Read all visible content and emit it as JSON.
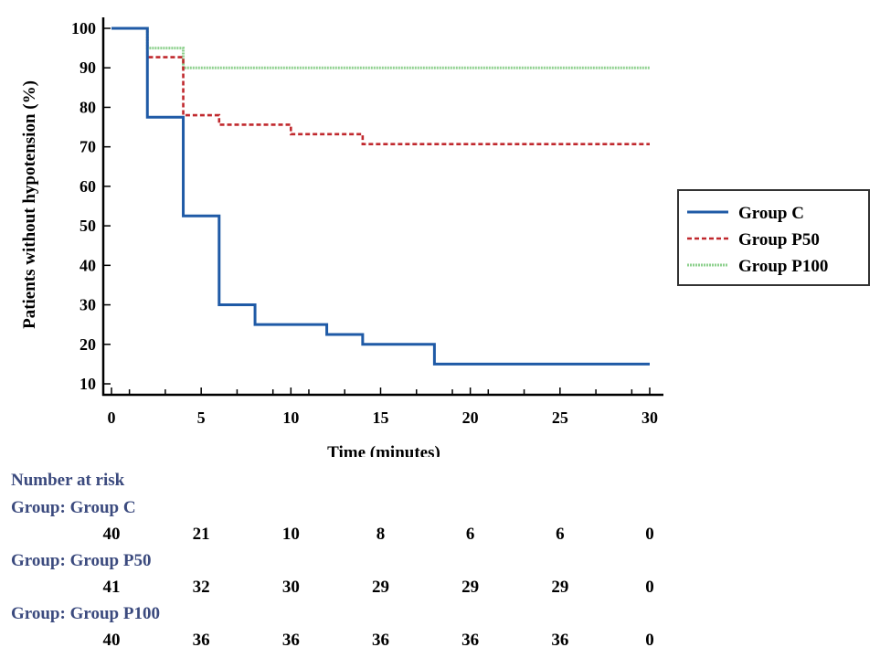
{
  "chart_data": {
    "type": "line",
    "subtype": "kaplan-meier-step",
    "xlabel": "Time (minutes)",
    "ylabel": "Patients without hypotension (%)",
    "xlim": [
      0,
      30
    ],
    "ylim": [
      10,
      100
    ],
    "xticks": [
      0,
      5,
      10,
      15,
      20,
      25,
      30
    ],
    "yticks": [
      10,
      20,
      30,
      40,
      50,
      60,
      70,
      80,
      90,
      100
    ],
    "grid": false,
    "legend_position": "right",
    "series": [
      {
        "name": "Group C",
        "color": "#1f5aa6",
        "style": "solid",
        "x": [
          0,
          2,
          4,
          6,
          8,
          12,
          14,
          18,
          30
        ],
        "y": [
          100,
          77.5,
          52.5,
          30,
          25,
          22.5,
          20,
          15,
          15
        ]
      },
      {
        "name": "Group P50",
        "color": "#c0282d",
        "style": "dashed",
        "x": [
          0,
          2,
          4,
          6,
          10,
          14,
          30
        ],
        "y": [
          100,
          92.7,
          78,
          75.6,
          73.2,
          70.7,
          70.7
        ]
      },
      {
        "name": "Group P100",
        "color": "#8fd18f",
        "style": "dotted",
        "x": [
          0,
          2,
          4,
          30
        ],
        "y": [
          100,
          95,
          90,
          90
        ]
      }
    ]
  },
  "risk_table": {
    "title": "Number at risk",
    "timepoints": [
      0,
      5,
      10,
      15,
      20,
      25,
      30
    ],
    "groups": [
      {
        "label": "Group: Group C",
        "counts": [
          "40",
          "21",
          "10",
          "8",
          "6",
          "6",
          "0"
        ]
      },
      {
        "label": "Group: Group P50",
        "counts": [
          "41",
          "32",
          "30",
          "29",
          "29",
          "29",
          "0"
        ]
      },
      {
        "label": "Group: Group P100",
        "counts": [
          "40",
          "36",
          "36",
          "36",
          "36",
          "36",
          "0"
        ]
      }
    ]
  }
}
